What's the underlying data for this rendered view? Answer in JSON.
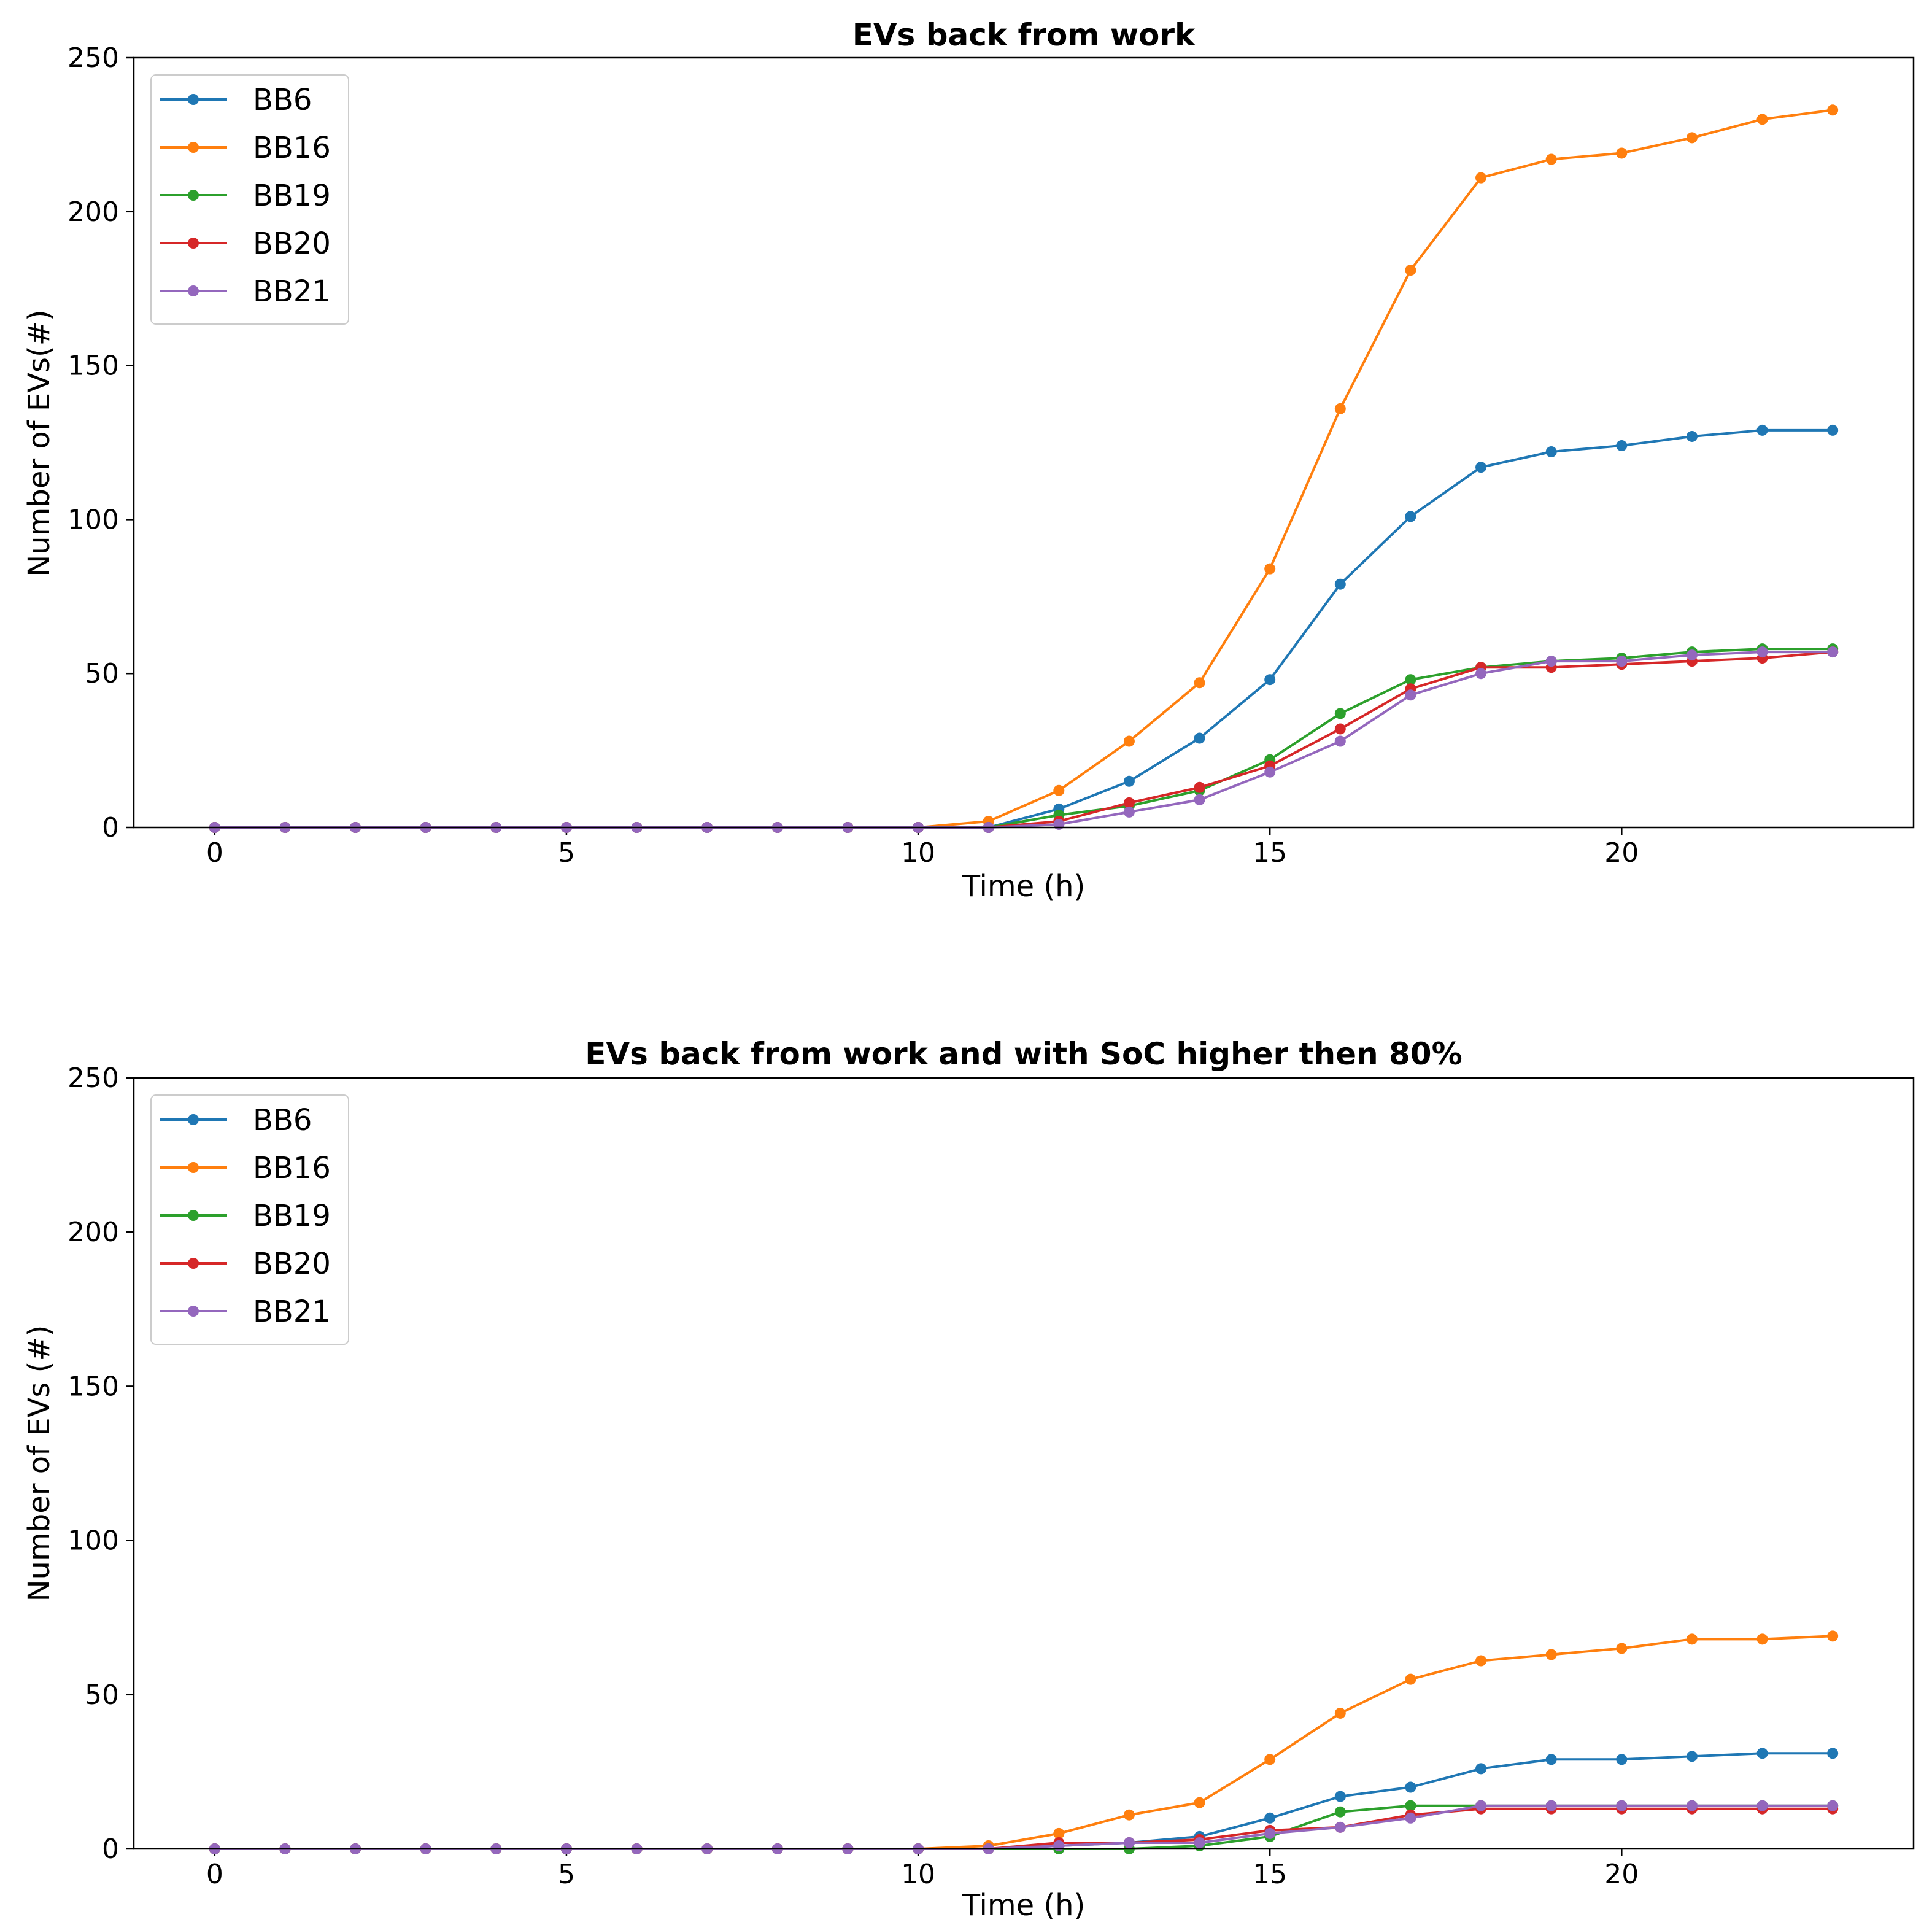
{
  "colors": {
    "BB6": "#1f77b4",
    "BB16": "#ff7f0e",
    "BB19": "#2ca02c",
    "BB20": "#d62728",
    "BB21": "#9467bd"
  },
  "chart_data": [
    {
      "type": "line",
      "title": "EVs back from work",
      "xlabel": "Time (h)",
      "ylabel": "Number of EVs(#)",
      "xlim": [
        -1.15,
        24.15
      ],
      "ylim": [
        0,
        250
      ],
      "xticks": [
        "0",
        "5",
        "10",
        "15",
        "20"
      ],
      "yticks": [
        "0",
        "50",
        "100",
        "150",
        "200",
        "250"
      ],
      "legend": "top-left",
      "x": [
        0,
        1,
        2,
        3,
        4,
        5,
        6,
        7,
        8,
        9,
        10,
        11,
        12,
        13,
        14,
        15,
        16,
        17,
        18,
        19,
        20,
        21,
        22,
        23
      ],
      "series": [
        {
          "name": "BB6",
          "values": [
            0,
            0,
            0,
            0,
            0,
            0,
            0,
            0,
            0,
            0,
            0,
            0,
            6,
            15,
            29,
            48,
            79,
            101,
            117,
            122,
            124,
            127,
            129,
            129
          ]
        },
        {
          "name": "BB16",
          "values": [
            0,
            0,
            0,
            0,
            0,
            0,
            0,
            0,
            0,
            0,
            0,
            2,
            12,
            28,
            47,
            84,
            136,
            181,
            211,
            217,
            219,
            224,
            230,
            233
          ]
        },
        {
          "name": "BB19",
          "values": [
            0,
            0,
            0,
            0,
            0,
            0,
            0,
            0,
            0,
            0,
            0,
            0,
            4,
            7,
            12,
            22,
            37,
            48,
            52,
            54,
            55,
            57,
            58,
            58
          ]
        },
        {
          "name": "BB20",
          "values": [
            0,
            0,
            0,
            0,
            0,
            0,
            0,
            0,
            0,
            0,
            0,
            0,
            2,
            8,
            13,
            20,
            32,
            45,
            52,
            52,
            53,
            54,
            55,
            57
          ]
        },
        {
          "name": "BB21",
          "values": [
            0,
            0,
            0,
            0,
            0,
            0,
            0,
            0,
            0,
            0,
            0,
            0,
            1,
            5,
            9,
            18,
            28,
            43,
            50,
            54,
            54,
            56,
            57,
            57
          ]
        }
      ]
    },
    {
      "type": "line",
      "title": "EVs back from work and with SoC higher then 80%",
      "xlabel": "Time (h)",
      "ylabel": "Number of EVs (#)",
      "xlim": [
        -1.15,
        24.15
      ],
      "ylim": [
        0,
        250
      ],
      "xticks": [
        "0",
        "5",
        "10",
        "15",
        "20"
      ],
      "yticks": [
        "0",
        "50",
        "100",
        "150",
        "200",
        "250"
      ],
      "legend": "top-left",
      "x": [
        0,
        1,
        2,
        3,
        4,
        5,
        6,
        7,
        8,
        9,
        10,
        11,
        12,
        13,
        14,
        15,
        16,
        17,
        18,
        19,
        20,
        21,
        22,
        23
      ],
      "series": [
        {
          "name": "BB6",
          "values": [
            0,
            0,
            0,
            0,
            0,
            0,
            0,
            0,
            0,
            0,
            0,
            0,
            1,
            2,
            4,
            10,
            17,
            20,
            26,
            29,
            29,
            30,
            31,
            31
          ]
        },
        {
          "name": "BB16",
          "values": [
            0,
            0,
            0,
            0,
            0,
            0,
            0,
            0,
            0,
            0,
            0,
            1,
            5,
            11,
            15,
            29,
            44,
            55,
            61,
            63,
            65,
            68,
            68,
            69
          ]
        },
        {
          "name": "BB19",
          "values": [
            0,
            0,
            0,
            0,
            0,
            0,
            0,
            0,
            0,
            0,
            0,
            0,
            0,
            0,
            1,
            4,
            12,
            14,
            14,
            14,
            14,
            14,
            14,
            14
          ]
        },
        {
          "name": "BB20",
          "values": [
            0,
            0,
            0,
            0,
            0,
            0,
            0,
            0,
            0,
            0,
            0,
            0,
            2,
            2,
            3,
            6,
            7,
            11,
            13,
            13,
            13,
            13,
            13,
            13
          ]
        },
        {
          "name": "BB21",
          "values": [
            0,
            0,
            0,
            0,
            0,
            0,
            0,
            0,
            0,
            0,
            0,
            0,
            1,
            2,
            2,
            5,
            7,
            10,
            14,
            14,
            14,
            14,
            14,
            14
          ]
        }
      ]
    }
  ]
}
